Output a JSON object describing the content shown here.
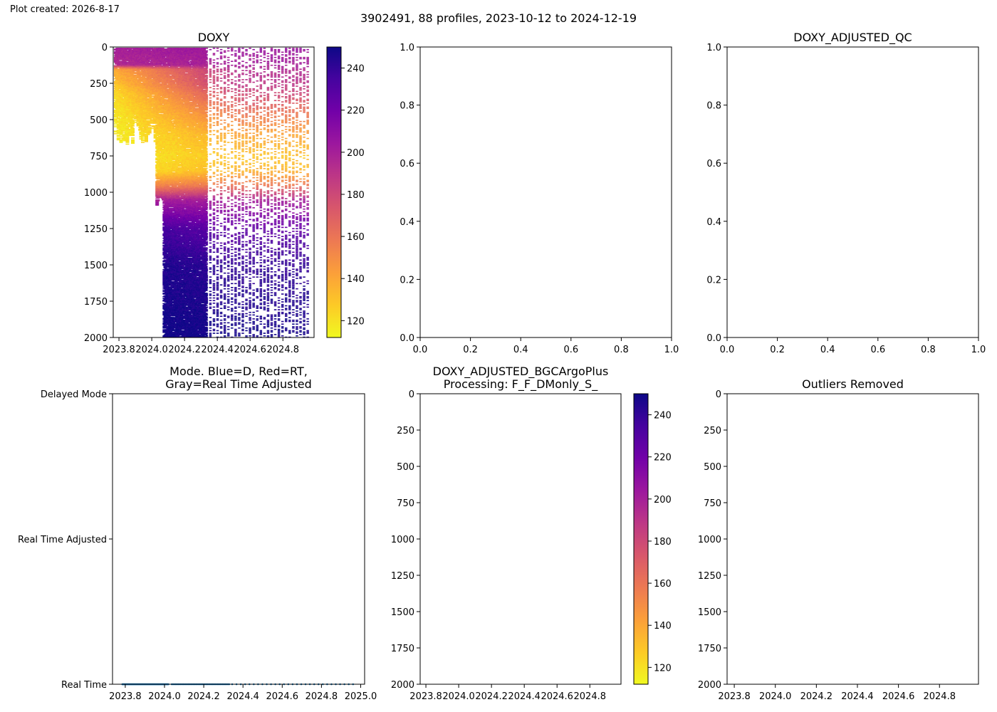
{
  "header": {
    "created_label": "Plot created: 2026-8-17",
    "suptitle": "3902491, 88 profiles, 2023-10-12 to 2024-12-19"
  },
  "colormap": {
    "name": "plasma_r",
    "stops": [
      "#f0f921",
      "#fdca26",
      "#fb9f3a",
      "#ed7953",
      "#d8576b",
      "#bd3786",
      "#9c179e",
      "#7201a8",
      "#46039f",
      "#0d0887"
    ]
  },
  "chart_data": [
    {
      "id": "doxy",
      "type": "heatmap",
      "title": "DOXY",
      "x_ticks": [
        "2023.8",
        "2024.0",
        "2024.2",
        "2024.4",
        "2024.6",
        "2024.8"
      ],
      "y_ticks": [
        "0",
        "250",
        "500",
        "750",
        "1000",
        "1250",
        "1500",
        "1750",
        "2000"
      ],
      "xlim": [
        2023.765,
        2024.99
      ],
      "ylim": [
        2000,
        0
      ],
      "inverted_y": true,
      "colorbar": {
        "ticks": [
          "120",
          "140",
          "160",
          "180",
          "200",
          "220",
          "240"
        ],
        "range": [
          112,
          250
        ]
      },
      "x_range": [
        2023.78,
        2024.97
      ],
      "profile_count": 88,
      "shallow_profile_end": 2024.03,
      "deep_profile_start": 2024.075,
      "sampling_gap": {
        "start": 2024.33,
        "dense_step": 0.0055,
        "sparse_step": 0.022
      },
      "value_profile": [
        {
          "depth": 0,
          "early": 200,
          "late": 205
        },
        {
          "depth": 120,
          "early": 195,
          "late": 200
        },
        {
          "depth": 150,
          "early": 140,
          "late": 195
        },
        {
          "depth": 250,
          "early": 130,
          "late": 190
        },
        {
          "depth": 320,
          "early": 122,
          "late": 180
        },
        {
          "depth": 450,
          "early": 118,
          "late": 160
        },
        {
          "depth": 600,
          "early": 116,
          "late": 140
        },
        {
          "depth": 750,
          "early": 116,
          "late": 130
        },
        {
          "depth": 850,
          "early": 118,
          "late": 135
        },
        {
          "depth": 950,
          "early": 150,
          "late": 160
        },
        {
          "depth": 1050,
          "early": 200,
          "late": 200
        },
        {
          "depth": 1250,
          "early": 240,
          "late": 225
        },
        {
          "depth": 1500,
          "early": 248,
          "late": 240
        },
        {
          "depth": 2000,
          "early": 250,
          "late": 248
        }
      ]
    },
    {
      "id": "doxy_adjusted_empty",
      "type": "scatter",
      "title": "",
      "x_ticks": [
        "0.0",
        "0.2",
        "0.4",
        "0.6",
        "0.8",
        "1.0"
      ],
      "y_ticks": [
        "0.0",
        "0.2",
        "0.4",
        "0.6",
        "0.8",
        "1.0"
      ],
      "xlim": [
        0,
        1
      ],
      "ylim": [
        0,
        1
      ],
      "series": []
    },
    {
      "id": "doxy_adjusted_qc",
      "type": "scatter",
      "title": "DOXY_ADJUSTED_QC",
      "x_ticks": [
        "0.0",
        "0.2",
        "0.4",
        "0.6",
        "0.8",
        "1.0"
      ],
      "y_ticks": [
        "0.0",
        "0.2",
        "0.4",
        "0.6",
        "0.8",
        "1.0"
      ],
      "xlim": [
        0,
        1
      ],
      "ylim": [
        0,
        1
      ],
      "series": []
    },
    {
      "id": "mode",
      "type": "scatter",
      "title": [
        "Mode. Blue=D, Red=RT,",
        "Gray=Real Time Adjusted"
      ],
      "x_ticks": [
        "2023.8",
        "2024.0",
        "2024.2",
        "2024.4",
        "2024.6",
        "2024.8",
        "2025.0"
      ],
      "y_ticks": [
        "Delayed Mode",
        "Real Time Adjusted",
        "Real Time"
      ],
      "xlim": [
        2023.735,
        2025.02
      ],
      "ylim": [
        0,
        2
      ],
      "marker_color": "#1f77b4",
      "series": [
        {
          "mode": "Real Time",
          "y": 0,
          "segments": [
            {
              "from": 2023.785,
              "to": 2024.02,
              "step": 0.0025
            },
            {
              "from": 2024.037,
              "to": 2024.33,
              "step": 0.0065
            },
            {
              "from": 2024.345,
              "to": 2024.97,
              "step": 0.022
            }
          ]
        }
      ]
    },
    {
      "id": "doxy_adjusted_bgcargoplus",
      "type": "heatmap",
      "title": [
        "DOXY_ADJUSTED_BGCArgoPlus",
        "Processing: F_F_DMonly_S_"
      ],
      "x_ticks": [
        "2023.8",
        "2024.0",
        "2024.2",
        "2024.4",
        "2024.6",
        "2024.8"
      ],
      "y_ticks": [
        "0",
        "250",
        "500",
        "750",
        "1000",
        "1250",
        "1500",
        "1750",
        "2000"
      ],
      "xlim": [
        2023.765,
        2024.99
      ],
      "ylim": [
        2000,
        0
      ],
      "inverted_y": true,
      "colorbar": {
        "ticks": [
          "120",
          "140",
          "160",
          "180",
          "200",
          "220",
          "240"
        ],
        "range": [
          112,
          250
        ]
      },
      "series": []
    },
    {
      "id": "outliers_removed",
      "type": "scatter",
      "title": "Outliers Removed",
      "x_ticks": [
        "2023.8",
        "2024.0",
        "2024.2",
        "2024.4",
        "2024.6",
        "2024.8"
      ],
      "y_ticks": [
        "0",
        "250",
        "500",
        "750",
        "1000",
        "1250",
        "1500",
        "1750",
        "2000"
      ],
      "xlim": [
        2023.765,
        2024.99
      ],
      "ylim": [
        2000,
        0
      ],
      "inverted_y": true,
      "series": []
    }
  ]
}
